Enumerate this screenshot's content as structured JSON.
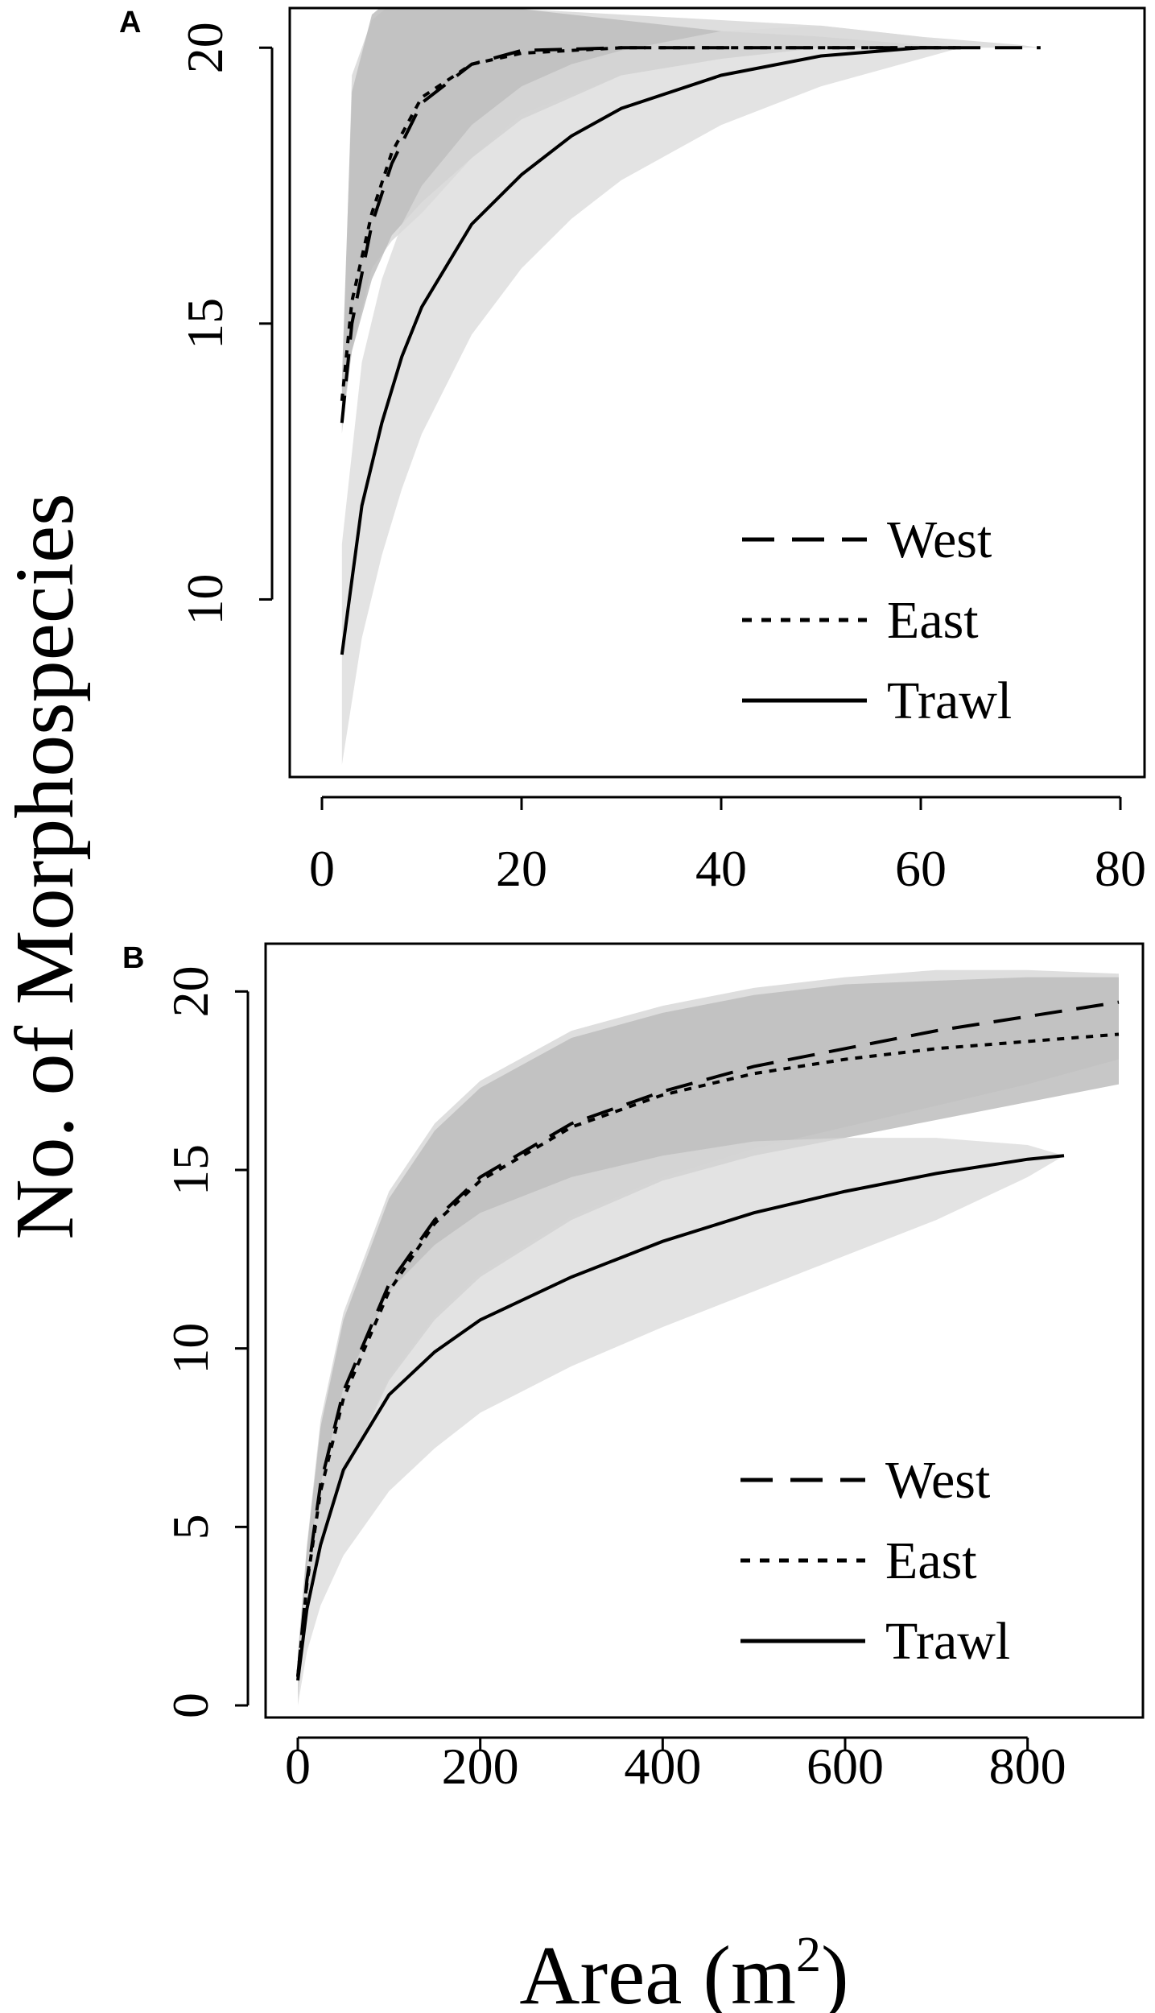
{
  "figure": {
    "ylabel": "No. of Morphospecies",
    "xlabel_main": "Area (m",
    "xlabel_sup": "2",
    "xlabel_close": ")"
  },
  "chart_data": [
    {
      "panel": "A",
      "type": "line",
      "xlim": [
        0,
        80
      ],
      "ylim": [
        7,
        20.5
      ],
      "xticks": [
        0,
        20,
        40,
        60,
        80
      ],
      "yticks": [
        10,
        15,
        20
      ],
      "legend_position": "bottom-right",
      "grid": false,
      "series": [
        {
          "name": "West",
          "style": "dashed",
          "x": [
            2,
            3,
            5,
            7,
            10,
            15,
            20,
            30,
            40,
            50,
            60,
            70,
            72
          ],
          "y": [
            13.2,
            15,
            16.8,
            17.9,
            19.0,
            19.7,
            19.95,
            20,
            20,
            20,
            20,
            20,
            20
          ],
          "band_lower": [
            13,
            14.5,
            16,
            16.5,
            17,
            18,
            18.8,
            19.5,
            19.8,
            20,
            20,
            20,
            20
          ],
          "band_upper": [
            13.5,
            19.5,
            20.5,
            20.8,
            20.9,
            20.8,
            20.7,
            20.6,
            20.5,
            20.4,
            20.2,
            20.05,
            20
          ]
        },
        {
          "name": "East",
          "style": "dotted",
          "x": [
            2,
            3,
            5,
            7,
            10,
            15,
            20,
            30,
            40,
            50,
            60,
            64
          ],
          "y": [
            13.6,
            15.4,
            17.0,
            18.1,
            19.1,
            19.7,
            19.9,
            20,
            20,
            20,
            20,
            20
          ],
          "band_lower": [
            13.2,
            14.5,
            15.8,
            16.6,
            17.2,
            18.0,
            18.7,
            19.5,
            19.8,
            20,
            20,
            20
          ],
          "band_upper": [
            14,
            19.2,
            20.6,
            20.9,
            20.9,
            20.8,
            20.7,
            20.5,
            20.3,
            20.2,
            20.05,
            20
          ]
        },
        {
          "name": "Trawl",
          "style": "solid",
          "x": [
            2,
            4,
            6,
            8,
            10,
            15,
            20,
            25,
            30,
            40,
            50,
            60,
            64
          ],
          "y": [
            9,
            11.7,
            13.2,
            14.4,
            15.3,
            16.8,
            17.7,
            18.4,
            18.9,
            19.5,
            19.85,
            20,
            20
          ],
          "band_lower": [
            7,
            9.3,
            10.8,
            12,
            13,
            14.8,
            16,
            16.9,
            17.6,
            18.6,
            19.3,
            19.8,
            20
          ],
          "band_upper": [
            11,
            14.3,
            15.8,
            16.8,
            17.5,
            18.6,
            19.3,
            19.7,
            19.95,
            20.3,
            20.4,
            20.2,
            20
          ]
        }
      ]
    },
    {
      "panel": "B",
      "type": "line",
      "xlim": [
        0,
        900
      ],
      "ylim": [
        0,
        21
      ],
      "xticks": [
        0,
        200,
        400,
        600,
        800
      ],
      "yticks": [
        0,
        5,
        10,
        15,
        20
      ],
      "legend_position": "bottom-right",
      "grid": false,
      "series": [
        {
          "name": "West",
          "style": "dashed",
          "x": [
            0,
            10,
            25,
            50,
            100,
            150,
            200,
            300,
            400,
            500,
            600,
            700,
            800,
            900
          ],
          "y": [
            0.8,
            3.5,
            6.2,
            8.8,
            11.8,
            13.6,
            14.8,
            16.3,
            17.2,
            17.9,
            18.4,
            18.9,
            19.3,
            19.7
          ],
          "band_lower": [
            0.2,
            2.5,
            4.5,
            6.5,
            9.2,
            10.9,
            12.1,
            13.7,
            14.8,
            15.6,
            16.2,
            16.8,
            17.4,
            18.1
          ],
          "band_upper": [
            1.4,
            4.5,
            8,
            11,
            14.4,
            16.3,
            17.5,
            18.9,
            19.6,
            20.1,
            20.4,
            20.6,
            20.6,
            20.5
          ]
        },
        {
          "name": "East",
          "style": "dotted",
          "x": [
            0,
            10,
            25,
            50,
            100,
            150,
            200,
            300,
            400,
            500,
            600,
            700,
            800,
            900
          ],
          "y": [
            0.8,
            3.4,
            6.0,
            8.6,
            11.6,
            13.5,
            14.7,
            16.2,
            17.1,
            17.7,
            18.1,
            18.4,
            18.6,
            18.8
          ],
          "band_lower": [
            0.2,
            2.4,
            4.4,
            6.4,
            9.1,
            10.8,
            12.0,
            13.6,
            14.7,
            15.4,
            15.9,
            16.4,
            16.9,
            17.4
          ],
          "band_upper": [
            1.4,
            4.4,
            7.8,
            10.8,
            14.2,
            16.1,
            17.3,
            18.7,
            19.4,
            19.9,
            20.2,
            20.3,
            20.4,
            20.4
          ]
        },
        {
          "name": "Trawl",
          "style": "solid",
          "x": [
            0,
            10,
            25,
            50,
            100,
            150,
            200,
            300,
            400,
            500,
            600,
            700,
            800,
            840
          ],
          "y": [
            0.7,
            2.7,
            4.5,
            6.6,
            8.7,
            9.9,
            10.8,
            12.0,
            13.0,
            13.8,
            14.4,
            14.9,
            15.3,
            15.4
          ],
          "band_lower": [
            0,
            1.5,
            2.8,
            4.2,
            6.0,
            7.2,
            8.2,
            9.5,
            10.6,
            11.6,
            12.6,
            13.6,
            14.8,
            15.4
          ],
          "band_upper": [
            1.3,
            3.9,
            6.2,
            8.9,
            11.6,
            12.9,
            13.8,
            14.8,
            15.4,
            15.8,
            15.9,
            15.9,
            15.7,
            15.4
          ]
        }
      ]
    }
  ]
}
